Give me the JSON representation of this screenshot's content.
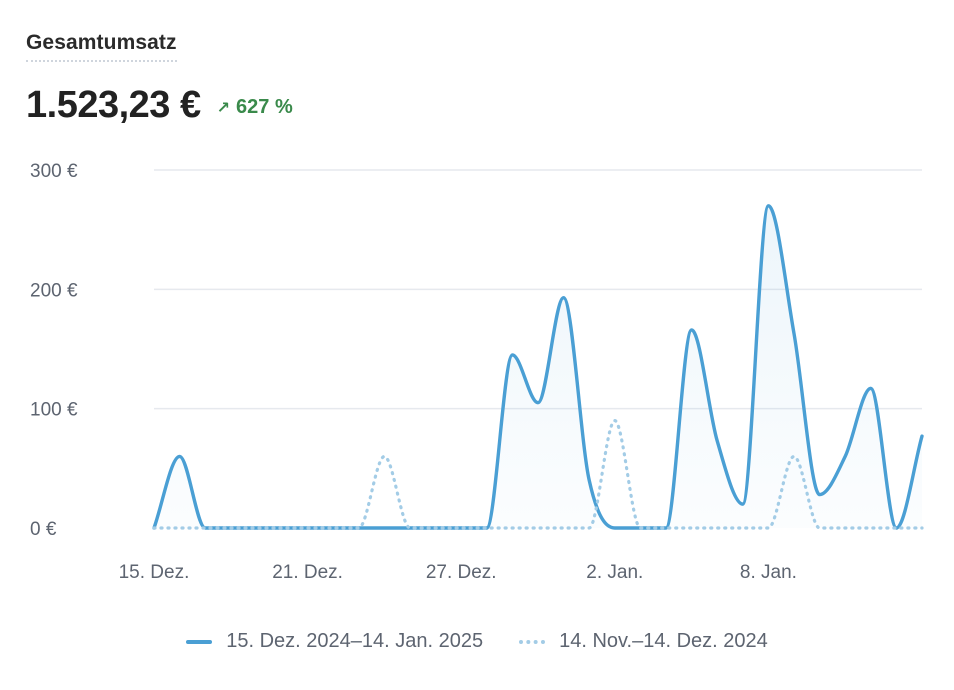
{
  "card": {
    "title": "Gesamtumsatz",
    "total": "1.523,23 €",
    "change": "627 %",
    "change_icon": "arrow-up-right-icon"
  },
  "colors": {
    "current": "#4a9fd4",
    "previous": "#a3cce6",
    "positive": "#3a8a4b",
    "grid": "#e6e9ee"
  },
  "legend": {
    "current": "15. Dez. 2024–14. Jan. 2025",
    "previous": "14. Nov.–14. Dez. 2024"
  },
  "chart_data": {
    "type": "line",
    "x_ticks": [
      "15. Dez.",
      "21. Dez.",
      "27. Dez.",
      "2. Jan.",
      "8. Jan."
    ],
    "y_ticks": [
      "0 €",
      "100 €",
      "200 €",
      "300 €"
    ],
    "ylim": [
      0,
      300
    ],
    "grid": true,
    "legend_position": "bottom",
    "series": [
      {
        "name": "15. Dez. 2024–14. Jan. 2025",
        "style": "solid",
        "area": true,
        "values": [
          0,
          60,
          0,
          0,
          0,
          0,
          0,
          0,
          0,
          0,
          0,
          0,
          0,
          0,
          145,
          105,
          193,
          40,
          0,
          0,
          0,
          166,
          73,
          20,
          270,
          163,
          28,
          60,
          117,
          0,
          77
        ]
      },
      {
        "name": "14. Nov.–14. Dez. 2024",
        "style": "dotted",
        "area": false,
        "values": [
          0,
          0,
          0,
          0,
          0,
          0,
          0,
          0,
          0,
          60,
          0,
          0,
          0,
          0,
          0,
          0,
          0,
          0,
          90,
          0,
          0,
          0,
          0,
          0,
          0,
          60,
          0,
          0,
          0,
          0,
          0
        ]
      }
    ]
  }
}
